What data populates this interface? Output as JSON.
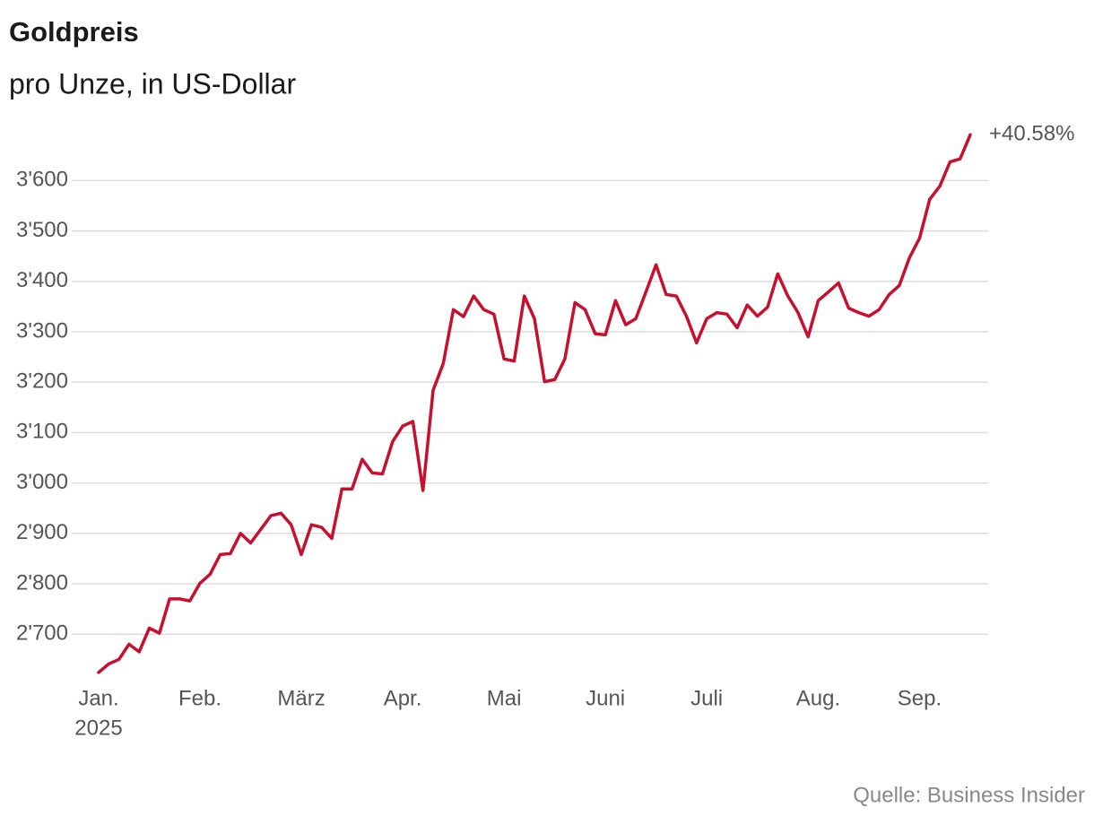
{
  "chart_data": {
    "type": "line",
    "title": "Goldpreis",
    "subtitle": "pro Unze, in US-Dollar",
    "source": "Quelle: Business Insider",
    "annotation": "+40.58%",
    "year_label": "2025",
    "categories": [
      "Jan.",
      null,
      null,
      null,
      null,
      null,
      null,
      null,
      null,
      null,
      "Feb.",
      null,
      null,
      null,
      null,
      null,
      null,
      null,
      null,
      null,
      "März",
      null,
      null,
      null,
      null,
      null,
      null,
      null,
      null,
      null,
      "Apr.",
      null,
      null,
      null,
      null,
      null,
      null,
      null,
      null,
      null,
      "Mai",
      null,
      null,
      null,
      null,
      null,
      null,
      null,
      null,
      null,
      "Juni",
      null,
      null,
      null,
      null,
      null,
      null,
      null,
      null,
      null,
      "Juli",
      null,
      null,
      null,
      null,
      null,
      null,
      null,
      null,
      null,
      null,
      "Aug.",
      null,
      null,
      null,
      null,
      null,
      null,
      null,
      null,
      null,
      "Sep.",
      null,
      null,
      null,
      null,
      null
    ],
    "series": [
      {
        "name": "Goldpreis",
        "color": "#c8102e",
        "values": [
          2624,
          2641,
          2650,
          2680,
          2665,
          2712,
          2702,
          2770,
          2770,
          2766,
          2801,
          2819,
          2858,
          2860,
          2900,
          2881,
          2908,
          2935,
          2940,
          2917,
          2858,
          2917,
          2912,
          2890,
          2988,
          2988,
          3047,
          3020,
          3018,
          3082,
          3113,
          3122,
          2985,
          3184,
          3237,
          3344,
          3330,
          3371,
          3344,
          3335,
          3246,
          3242,
          3371,
          3326,
          3201,
          3205,
          3246,
          3358,
          3344,
          3296,
          3294,
          3362,
          3314,
          3326,
          3379,
          3433,
          3374,
          3371,
          3331,
          3278,
          3326,
          3338,
          3335,
          3308,
          3353,
          3331,
          3349,
          3415,
          3371,
          3338,
          3290,
          3362,
          3379,
          3397,
          3347,
          3338,
          3331,
          3344,
          3374,
          3392,
          3447,
          3486,
          3563,
          3589,
          3637,
          3643,
          3691
        ]
      }
    ],
    "ylim": [
      2600,
      3700
    ],
    "yticks": [
      {
        "value": 2700,
        "label": "2'700"
      },
      {
        "value": 2800,
        "label": "2'800"
      },
      {
        "value": 2900,
        "label": "2'900"
      },
      {
        "value": 3000,
        "label": "3'000"
      },
      {
        "value": 3100,
        "label": "3'100"
      },
      {
        "value": 3200,
        "label": "3'200"
      },
      {
        "value": 3300,
        "label": "3'300"
      },
      {
        "value": 3400,
        "label": "3'400"
      },
      {
        "value": 3500,
        "label": "3'500"
      },
      {
        "value": 3600,
        "label": "3'600"
      }
    ],
    "grid": true
  }
}
